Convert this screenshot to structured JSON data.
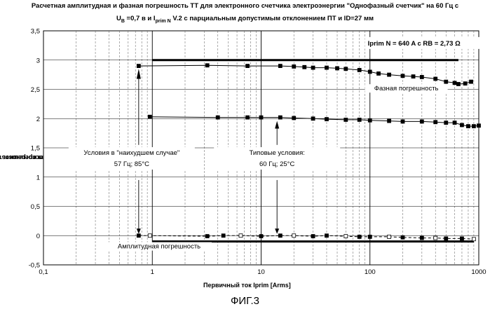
{
  "chart_data": {
    "type": "line",
    "title_line1": "Расчетная амплитудная и фазная погрешность ТТ для электронного счетчика электроэнергии \"Однофазный счетчик\" на 60 Гц с",
    "title_line2_a": "U",
    "title_line2_b": "B",
    "title_line2_c": " =0,7 в и I",
    "title_line2_d": "prim  N",
    "title_line2_e": "  V.2 с парциальным допустимым отклонением ПТ и ID=27 мм",
    "ylabel_line1": "Амплитудная погрешность  F(Iprim) [%] /",
    "ylabel_line2": "Фазная погрешность  φ(Iprim) [°]",
    "xlabel": "Первичный ток  Iprim [Arms]",
    "figure_label": "ФИГ.3",
    "x_scale": "log",
    "xlim": [
      0.1,
      1000
    ],
    "ylim": [
      -0.5,
      3.5
    ],
    "x_ticks": [
      "0,1",
      "1",
      "10",
      "100",
      "1000"
    ],
    "y_ticks": [
      "-0,5",
      "0",
      "0,5",
      "1",
      "1,5",
      "2",
      "2,5",
      "3",
      "3,5"
    ],
    "grid": true,
    "params_text": "Iprim N = 640 A  c   RB = 2,73 Ω",
    "series": [
      {
        "name": "Фазная погрешность",
        "style": "solid-square",
        "x": [
          0.75,
          3.2,
          7.5,
          15,
          20,
          25,
          30,
          40,
          50,
          60,
          80,
          100,
          120,
          150,
          200,
          250,
          300,
          400,
          500,
          600,
          650,
          750,
          850
        ],
        "y": [
          2.9,
          2.91,
          2.9,
          2.9,
          2.89,
          2.88,
          2.87,
          2.87,
          2.86,
          2.85,
          2.83,
          2.8,
          2.77,
          2.75,
          2.73,
          2.72,
          2.71,
          2.68,
          2.63,
          2.61,
          2.59,
          2.6,
          2.63
        ]
      },
      {
        "name": "",
        "style": "solid-square",
        "x": [
          0.95,
          4,
          7.5,
          10,
          15,
          20,
          30,
          40,
          60,
          80,
          100,
          150,
          200,
          300,
          400,
          500,
          600,
          700,
          800,
          900,
          1000
        ],
        "y": [
          2.03,
          2.02,
          2.02,
          2.02,
          2.02,
          2.01,
          2.0,
          1.99,
          1.98,
          1.98,
          1.97,
          1.96,
          1.95,
          1.95,
          1.94,
          1.93,
          1.93,
          1.89,
          1.87,
          1.87,
          1.88
        ]
      },
      {
        "name": "Амплитудная погрешность",
        "style": "dashed-square",
        "x": [
          0.75,
          0.95,
          3.2,
          4.5,
          6.5,
          10,
          15,
          20,
          30,
          40,
          60,
          80,
          100,
          150,
          200,
          300,
          400,
          500,
          700,
          900
        ],
        "y": [
          0.0,
          0.0,
          -0.01,
          0.0,
          0.0,
          -0.01,
          0.0,
          0.0,
          -0.01,
          0.0,
          -0.01,
          -0.02,
          -0.02,
          -0.02,
          -0.03,
          -0.04,
          -0.04,
          -0.05,
          -0.05,
          -0.06
        ]
      }
    ],
    "reference_lines": [
      {
        "name": "upper-limit",
        "x": [
          1,
          650
        ],
        "y": [
          3.0,
          3.0
        ]
      },
      {
        "name": "lower-limit",
        "x": [
          1,
          900
        ],
        "y": [
          -0.1,
          -0.1
        ]
      }
    ],
    "annotations": {
      "worst_case_line1": "Условия в \"наихудшем случае\"",
      "worst_case_line2": "57 Гц; 85°C",
      "worst_case_x": 0.75,
      "typical_line1": "Типовые условия:",
      "typical_line2": "60 Гц; 25°C",
      "typical_x": 14,
      "phase_label": "Фазная погрешность",
      "amplitude_label": "Амплитудная погрешность"
    }
  }
}
